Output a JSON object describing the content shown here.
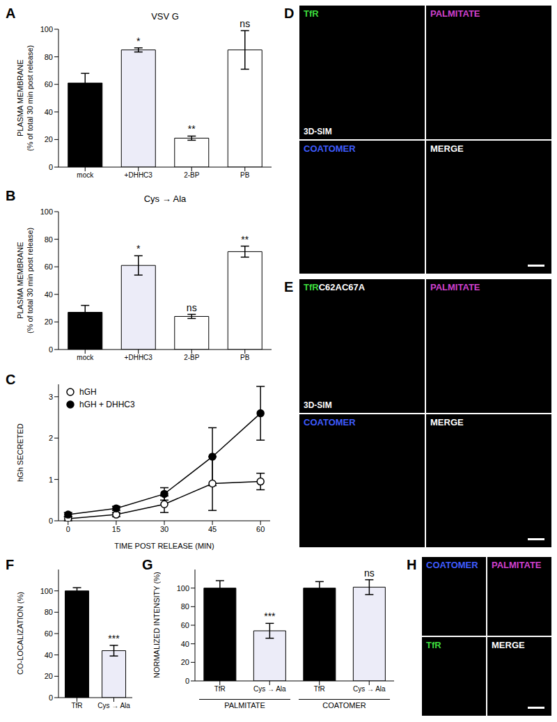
{
  "chart_data": [
    {
      "panel": "A",
      "type": "bar",
      "title": "VSV G",
      "y_label": [
        "PLASMA MEMBRANE",
        "(% of total 30 min post release)"
      ],
      "categories": [
        "mock",
        "+DHHC3",
        "2-BP",
        "PB"
      ],
      "values": [
        61,
        85,
        21,
        85
      ],
      "errors": [
        7,
        1.5,
        1.5,
        14
      ],
      "annotations": [
        null,
        "*",
        "**",
        "ns"
      ],
      "colors": [
        "#000000",
        "#ececf8",
        "#ffffff",
        "#ffffff"
      ],
      "ylim": [
        0,
        100
      ],
      "yticks": [
        0,
        20,
        40,
        60,
        80,
        100
      ]
    },
    {
      "panel": "B",
      "type": "bar",
      "title": "Cys → Ala",
      "y_label": [
        "PLASMA MEMBRANE",
        "(% of total 30 min post release)"
      ],
      "categories": [
        "mock",
        "+DHHC3",
        "2-BP",
        "PB"
      ],
      "values": [
        27,
        61,
        24,
        71
      ],
      "errors": [
        5,
        7,
        1.5,
        4
      ],
      "annotations": [
        null,
        "*",
        "ns",
        "**"
      ],
      "colors": [
        "#000000",
        "#ececf8",
        "#ffffff",
        "#ffffff"
      ],
      "ylim": [
        0,
        100
      ],
      "yticks": [
        0,
        20,
        40,
        60,
        80,
        100
      ]
    },
    {
      "panel": "C",
      "type": "line",
      "x_label": "TIME POST RELEASE (MIN)",
      "y_label": "hGh SECRETED",
      "x": [
        0,
        15,
        30,
        45,
        60
      ],
      "series": [
        {
          "name": "hGH",
          "color": "#ffffff",
          "marker": "circle",
          "values": [
            0.05,
            0.15,
            0.4,
            0.9,
            0.95
          ],
          "errors": [
            0.05,
            0.05,
            0.2,
            0.65,
            0.2
          ]
        },
        {
          "name": "hGH + DHHC3",
          "color": "#000000",
          "marker": "circle",
          "values": [
            0.15,
            0.3,
            0.65,
            1.55,
            2.6
          ],
          "errors": [
            0.05,
            0.05,
            0.15,
            0.7,
            0.65
          ]
        }
      ],
      "xlim": [
        -3,
        63
      ],
      "xticks": [
        0,
        15,
        30,
        45,
        60
      ],
      "ylim": [
        0,
        3.3
      ],
      "yticks": [
        0,
        1,
        2,
        3
      ],
      "legend": "upper left"
    },
    {
      "panel": "F",
      "type": "bar",
      "y_label": [
        "CO-LOCALIZATION (%)"
      ],
      "categories": [
        "TfR",
        "Cys → Ala"
      ],
      "values": [
        100,
        44
      ],
      "errors": [
        3,
        5
      ],
      "annotations": [
        null,
        "***"
      ],
      "colors": [
        "#000000",
        "#ececf8"
      ],
      "ylim": [
        0,
        120
      ],
      "yticks": [
        0,
        20,
        40,
        60,
        80,
        100
      ]
    },
    {
      "panel": "G",
      "type": "bar",
      "y_label": [
        "NORMALIZED INTENSITY (%)"
      ],
      "categories": [
        "TfR",
        "Cys → Ala",
        "TfR",
        "Cys → Ala"
      ],
      "groups": [
        "PALMITATE",
        "PALMITATE",
        "COATOMER",
        "COATOMER"
      ],
      "values": [
        100,
        54,
        100,
        101
      ],
      "errors": [
        8,
        8,
        7,
        8
      ],
      "annotations": [
        null,
        "***",
        null,
        "ns"
      ],
      "colors": [
        "#000000",
        "#ececf8",
        "#000000",
        "#ececf8"
      ],
      "ylim": [
        0,
        120
      ],
      "yticks": [
        0,
        20,
        40,
        60,
        80,
        100
      ]
    }
  ],
  "images": [
    {
      "panel": "D",
      "method": "3D-SIM",
      "channels": [
        {
          "label": "TfR",
          "color": "#3ddc3d"
        },
        {
          "label": "PALMITATE",
          "color": "#d040d0"
        },
        {
          "label": "COATOMER",
          "color": "#3f5cff"
        },
        {
          "label": "MERGE",
          "color": "#ffffff"
        }
      ]
    },
    {
      "panel": "E",
      "method": "3D-SIM",
      "channels": [
        {
          "label": "TfR",
          "suffix": "C62AC67A",
          "color": "#3ddc3d"
        },
        {
          "label": "PALMITATE",
          "color": "#d040d0"
        },
        {
          "label": "COATOMER",
          "color": "#3f5cff"
        },
        {
          "label": "MERGE",
          "color": "#ffffff"
        }
      ]
    },
    {
      "panel": "H",
      "channels": [
        {
          "label": "COATOMER",
          "color": "#3f5cff"
        },
        {
          "label": "PALMITATE",
          "color": "#d040d0"
        },
        {
          "label": "TfR",
          "color": "#3ddc3d"
        },
        {
          "label": "MERGE",
          "color": "#ffffff"
        }
      ]
    }
  ]
}
